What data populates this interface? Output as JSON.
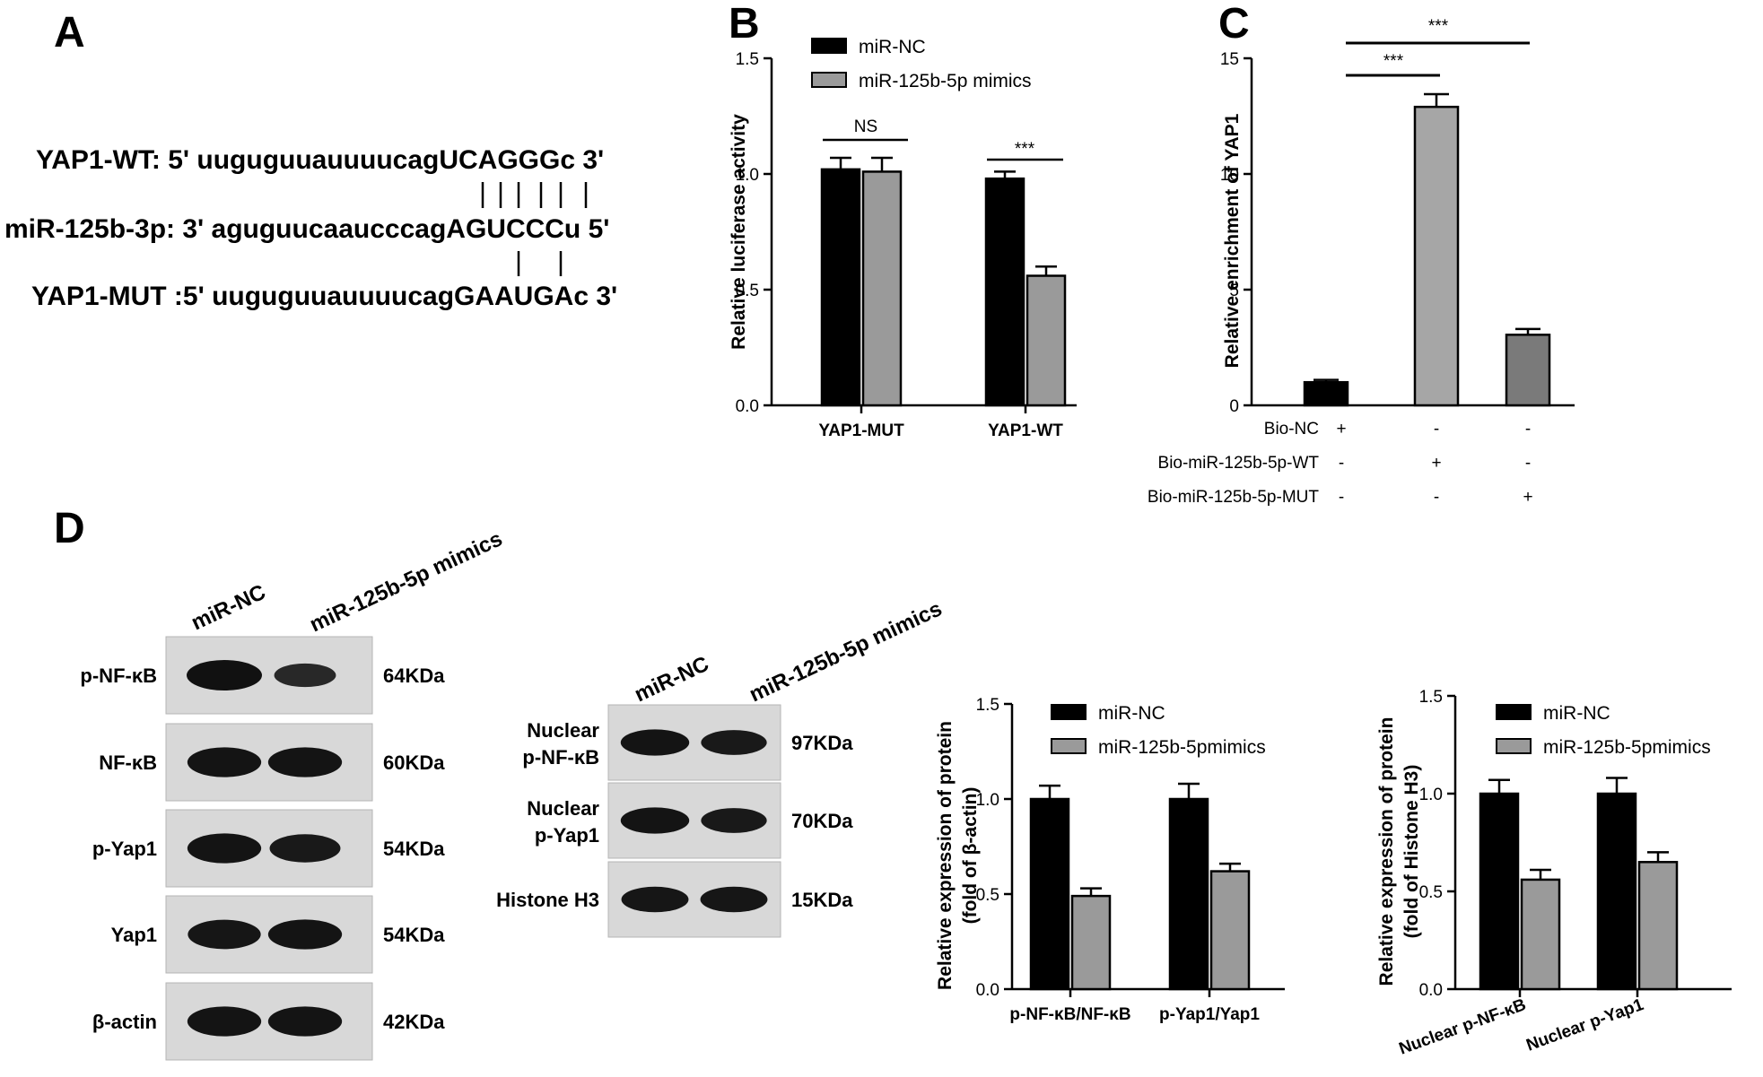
{
  "panels": {
    "A": {
      "letter": "A",
      "wt_line": "YAP1-WT: 5' uuguguuauuuucagUCAGGGc 3'",
      "mir_line": "miR-125b-3p: 3' aguguucaaucccagAGUCCCu 5'",
      "mut_line": "YAP1-MUT :5' uuguguuauuuucagGAAUGAc 3'"
    },
    "B": {
      "letter": "B"
    },
    "C": {
      "letter": "C"
    },
    "D": {
      "letter": "D"
    }
  },
  "blots": {
    "left": {
      "col_labels": [
        "miR-NC",
        "miR-125b-5p mimics"
      ],
      "rows": [
        {
          "label": "p-NF-κB",
          "size": "64KDa",
          "intensity": [
            1.0,
            0.55
          ]
        },
        {
          "label": "NF-κB",
          "size": "60KDa",
          "intensity": [
            0.95,
            0.95
          ]
        },
        {
          "label": "p-Yap1",
          "size": "54KDa",
          "intensity": [
            0.95,
            0.85
          ]
        },
        {
          "label": "Yap1",
          "size": "54KDa",
          "intensity": [
            0.92,
            0.95
          ]
        },
        {
          "label": "β-actin",
          "size": "42KDa",
          "intensity": [
            0.95,
            0.95
          ]
        }
      ]
    },
    "right": {
      "col_labels": [
        "miR-NC",
        "miR-125b-5p mimics"
      ],
      "rows": [
        {
          "label": "Nuclear p-NF-κB",
          "size": "97KDa",
          "intensity": [
            0.95,
            0.85
          ]
        },
        {
          "label": "Nuclear p-Yap1",
          "size": "70KDa",
          "intensity": [
            0.95,
            0.85
          ]
        },
        {
          "label": "Histone H3",
          "size": "15KDa",
          "intensity": [
            0.9,
            0.9
          ]
        }
      ]
    }
  },
  "chart_data": [
    {
      "id": "B",
      "type": "bar",
      "ylabel": "Relative luciferase activity",
      "ylim": [
        0,
        1.5
      ],
      "yticks": [
        "0.0",
        "0.5",
        "1.0",
        "1.5"
      ],
      "categories": [
        "YAP1-MUT",
        "YAP1-WT"
      ],
      "series": [
        {
          "name": "miR-NC",
          "color": "#000000",
          "values": [
            1.02,
            0.98
          ],
          "errors": [
            0.05,
            0.03
          ]
        },
        {
          "name": "miR-125b-5p mimics",
          "color": "#9a9a9a",
          "values": [
            1.01,
            0.56
          ],
          "errors": [
            0.06,
            0.04
          ]
        }
      ],
      "annotations": [
        "NS",
        "***"
      ],
      "legend_position": "top-left"
    },
    {
      "id": "C",
      "type": "bar",
      "ylabel": "Relative enrichment of YAP1",
      "ylim": [
        0,
        15
      ],
      "yticks": [
        "0",
        "5",
        "10",
        "15"
      ],
      "bars": [
        {
          "value": 1.0,
          "error": 0.1,
          "color": "#000000"
        },
        {
          "value": 12.9,
          "error": 0.55,
          "color": "#a6a6a6"
        },
        {
          "value": 3.05,
          "error": 0.25,
          "color": "#7a7a7a"
        }
      ],
      "condition_table": {
        "rows": [
          {
            "label": "Bio-NC",
            "marks": [
              "+",
              "-",
              "-"
            ]
          },
          {
            "label": "Bio-miR-125b-5p-WT",
            "marks": [
              "-",
              "+",
              "-"
            ]
          },
          {
            "label": "Bio-miR-125b-5p-MUT",
            "marks": [
              "-",
              "-",
              "+"
            ]
          }
        ]
      },
      "annotations": [
        "***",
        "***"
      ]
    },
    {
      "id": "D1",
      "type": "bar",
      "ylabel_lines": [
        "Relative expression of protein",
        "(fold of β-actin)"
      ],
      "ylim": [
        0,
        1.5
      ],
      "yticks": [
        "0.0",
        "0.5",
        "1.0",
        "1.5"
      ],
      "categories": [
        "p-NF-κB/NF-κB",
        "p-Yap1/Yap1"
      ],
      "series": [
        {
          "name": "miR-NC",
          "color": "#000000",
          "values": [
            1.0,
            1.0
          ],
          "errors": [
            0.07,
            0.08
          ]
        },
        {
          "name": "miR-125b-5pmimics",
          "color": "#9a9a9a",
          "values": [
            0.49,
            0.62
          ],
          "errors": [
            0.04,
            0.04
          ]
        }
      ],
      "annotations": [
        "***",
        "**"
      ],
      "legend_position": "top-right"
    },
    {
      "id": "D2",
      "type": "bar",
      "ylabel_lines": [
        "Relative expression of protein",
        "(fold of Histone H3)"
      ],
      "ylim": [
        0,
        1.5
      ],
      "yticks": [
        "0.0",
        "0.5",
        "1.0",
        "1.5"
      ],
      "categories": [
        "Nuclear p-NF-κB",
        "Nuclear p-Yap1"
      ],
      "series": [
        {
          "name": "miR-NC",
          "color": "#000000",
          "values": [
            1.0,
            1.0
          ],
          "errors": [
            0.07,
            0.08
          ]
        },
        {
          "name": "miR-125b-5pmimics",
          "color": "#9a9a9a",
          "values": [
            0.56,
            0.65
          ],
          "errors": [
            0.05,
            0.05
          ]
        }
      ],
      "annotations": [
        "***",
        "***"
      ],
      "legend_position": "top-right"
    }
  ]
}
